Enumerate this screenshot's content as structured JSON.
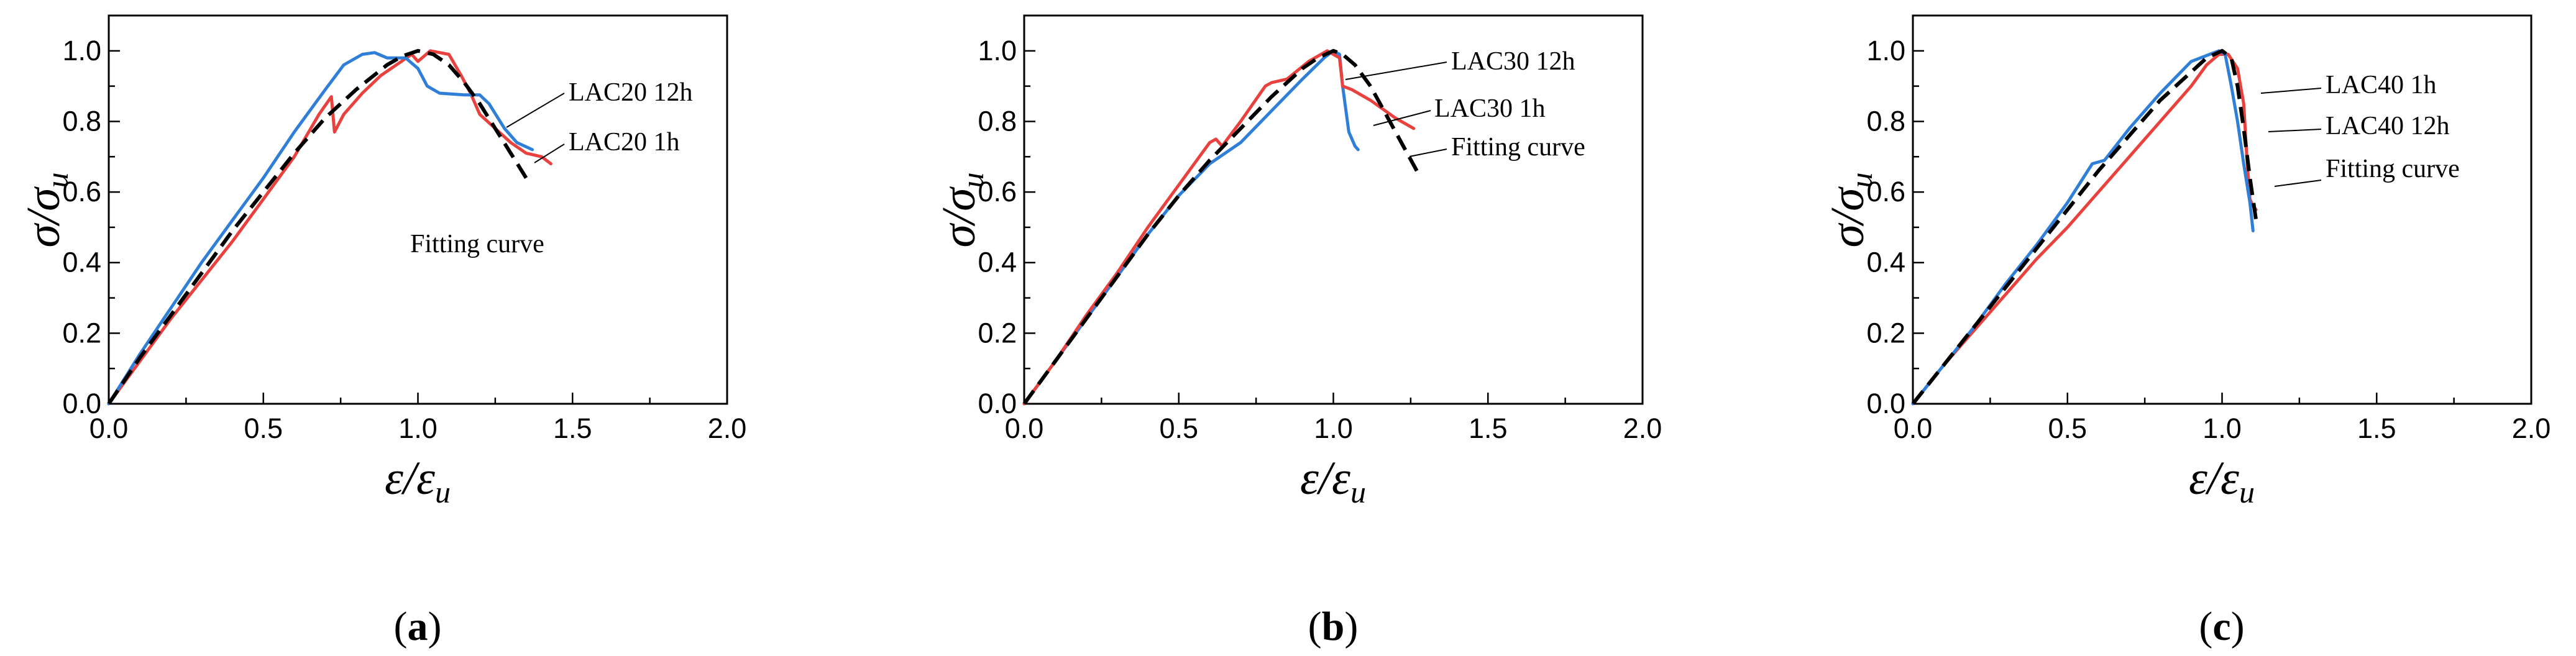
{
  "figure": {
    "panels": [
      {
        "id": "a",
        "label_open": "(",
        "label_letter": "a",
        "label_close": ")"
      },
      {
        "id": "b",
        "label_open": "(",
        "label_letter": "b",
        "label_close": ")"
      },
      {
        "id": "c",
        "label_open": "(",
        "label_letter": "c",
        "label_close": ")"
      }
    ],
    "colors": {
      "red": "#e8413e",
      "blue": "#2f7fd8",
      "black": "#000000"
    }
  },
  "chart_data": [
    {
      "type": "line",
      "panel": "a",
      "ylabel": {
        "main": "σ/σ",
        "sub": "u"
      },
      "xlabel": {
        "main": "ε/ε",
        "sub": "u"
      },
      "xlim": [
        0,
        2.0
      ],
      "ylim": [
        0,
        1.1
      ],
      "xticks": [
        "0.0",
        "0.5",
        "1.0",
        "1.5",
        "2.0"
      ],
      "yticks": [
        "0.0",
        "0.2",
        "0.4",
        "0.6",
        "0.8",
        "1.0"
      ],
      "annotations": [
        "LAC20 12h",
        "LAC20 1h",
        "Fitting curve"
      ],
      "series": [
        {
          "name": "LAC20 1h",
          "color": "#e8413e",
          "style": "solid",
          "x": [
            0,
            0.1,
            0.2,
            0.3,
            0.4,
            0.5,
            0.6,
            0.68,
            0.72,
            0.73,
            0.76,
            0.82,
            0.88,
            0.93,
            0.98,
            1.0,
            1.04,
            1.1,
            1.14,
            1.17,
            1.2,
            1.25,
            1.3,
            1.35,
            1.4,
            1.43
          ],
          "y": [
            0,
            0.12,
            0.24,
            0.35,
            0.46,
            0.58,
            0.7,
            0.82,
            0.87,
            0.77,
            0.82,
            0.88,
            0.93,
            0.96,
            0.99,
            0.97,
            1.0,
            0.99,
            0.93,
            0.88,
            0.82,
            0.78,
            0.74,
            0.71,
            0.7,
            0.68
          ]
        },
        {
          "name": "LAC20 12h",
          "color": "#2f7fd8",
          "style": "solid",
          "x": [
            0,
            0.1,
            0.2,
            0.3,
            0.4,
            0.5,
            0.6,
            0.7,
            0.76,
            0.82,
            0.86,
            0.9,
            0.96,
            1.0,
            1.03,
            1.07,
            1.15,
            1.2,
            1.23,
            1.28,
            1.32,
            1.37
          ],
          "y": [
            0,
            0.14,
            0.27,
            0.4,
            0.52,
            0.64,
            0.77,
            0.89,
            0.96,
            0.99,
            0.995,
            0.98,
            0.98,
            0.95,
            0.9,
            0.88,
            0.875,
            0.875,
            0.85,
            0.78,
            0.74,
            0.72
          ]
        },
        {
          "name": "Fitting curve",
          "color": "#000000",
          "style": "dashed",
          "x": [
            0,
            0.1,
            0.2,
            0.3,
            0.4,
            0.5,
            0.6,
            0.7,
            0.8,
            0.9,
            0.95,
            1.0,
            1.05,
            1.1,
            1.15,
            1.2,
            1.25,
            1.3,
            1.35
          ],
          "y": [
            0,
            0.13,
            0.25,
            0.37,
            0.49,
            0.6,
            0.71,
            0.81,
            0.89,
            0.96,
            0.985,
            1.0,
            0.99,
            0.96,
            0.91,
            0.85,
            0.78,
            0.71,
            0.64
          ]
        }
      ]
    },
    {
      "type": "line",
      "panel": "b",
      "ylabel": {
        "main": "σ/σ",
        "sub": "u"
      },
      "xlabel": {
        "main": "ε/ε",
        "sub": "u"
      },
      "xlim": [
        0,
        2.0
      ],
      "ylim": [
        0,
        1.1
      ],
      "xticks": [
        "0.0",
        "0.5",
        "1.0",
        "1.5",
        "2.0"
      ],
      "yticks": [
        "0.0",
        "0.2",
        "0.4",
        "0.6",
        "0.8",
        "1.0"
      ],
      "annotations": [
        "LAC30 12h",
        "LAC30 1h",
        "Fitting curve"
      ],
      "series": [
        {
          "name": "LAC30 12h",
          "color": "#2f7fd8",
          "style": "solid",
          "x": [
            0,
            0.1,
            0.2,
            0.3,
            0.4,
            0.5,
            0.6,
            0.7,
            0.8,
            0.9,
            0.97,
            1.0,
            1.02,
            1.03,
            1.05,
            1.07,
            1.08
          ],
          "y": [
            0,
            0.12,
            0.24,
            0.36,
            0.48,
            0.59,
            0.68,
            0.74,
            0.83,
            0.92,
            0.98,
            1.0,
            0.99,
            0.9,
            0.77,
            0.73,
            0.72
          ]
        },
        {
          "name": "LAC30 1h",
          "color": "#e8413e",
          "style": "solid",
          "x": [
            0,
            0.1,
            0.2,
            0.3,
            0.4,
            0.5,
            0.6,
            0.62,
            0.64,
            0.7,
            0.78,
            0.8,
            0.85,
            0.92,
            0.98,
            1.0,
            1.02,
            1.03,
            1.06,
            1.12,
            1.2,
            1.26
          ],
          "y": [
            0,
            0.12,
            0.25,
            0.37,
            0.5,
            0.62,
            0.74,
            0.75,
            0.73,
            0.8,
            0.9,
            0.91,
            0.92,
            0.97,
            1.0,
            0.99,
            0.98,
            0.9,
            0.89,
            0.86,
            0.81,
            0.78
          ]
        },
        {
          "name": "Fitting curve",
          "color": "#000000",
          "style": "dashed",
          "x": [
            0,
            0.1,
            0.2,
            0.3,
            0.4,
            0.5,
            0.6,
            0.7,
            0.8,
            0.9,
            0.95,
            1.0,
            1.03,
            1.07,
            1.12,
            1.17,
            1.22,
            1.27
          ],
          "y": [
            0,
            0.12,
            0.24,
            0.36,
            0.48,
            0.59,
            0.69,
            0.78,
            0.87,
            0.95,
            0.98,
            1.0,
            0.99,
            0.96,
            0.9,
            0.82,
            0.74,
            0.66
          ]
        }
      ]
    },
    {
      "type": "line",
      "panel": "c",
      "ylabel": {
        "main": "σ/σ",
        "sub": "u"
      },
      "xlabel": {
        "main": "ε/ε",
        "sub": "u"
      },
      "xlim": [
        0,
        2.0
      ],
      "ylim": [
        0,
        1.1
      ],
      "xticks": [
        "0.0",
        "0.5",
        "1.0",
        "1.5",
        "2.0"
      ],
      "yticks": [
        "0.0",
        "0.2",
        "0.4",
        "0.6",
        "0.8",
        "1.0"
      ],
      "annotations": [
        "LAC40 1h",
        "LAC40 12h",
        "Fitting curve"
      ],
      "series": [
        {
          "name": "LAC40 12h",
          "color": "#e8413e",
          "style": "solid",
          "x": [
            0,
            0.1,
            0.2,
            0.3,
            0.4,
            0.5,
            0.6,
            0.7,
            0.8,
            0.9,
            0.95,
            0.99,
            1.02,
            1.05,
            1.07,
            1.08,
            1.09,
            1.1,
            1.11
          ],
          "y": [
            0,
            0.11,
            0.21,
            0.31,
            0.41,
            0.5,
            0.6,
            0.7,
            0.8,
            0.9,
            0.96,
            0.99,
            0.99,
            0.95,
            0.85,
            0.7,
            0.58,
            0.56,
            0.55
          ]
        },
        {
          "name": "LAC40 1h",
          "color": "#2f7fd8",
          "style": "solid",
          "x": [
            0,
            0.1,
            0.2,
            0.3,
            0.4,
            0.5,
            0.58,
            0.62,
            0.7,
            0.8,
            0.9,
            0.96,
            0.99,
            1.01,
            1.03,
            1.05,
            1.07,
            1.09,
            1.1
          ],
          "y": [
            0,
            0.11,
            0.22,
            0.34,
            0.45,
            0.57,
            0.68,
            0.69,
            0.78,
            0.88,
            0.97,
            0.99,
            1.0,
            0.99,
            0.9,
            0.8,
            0.68,
            0.57,
            0.49
          ]
        },
        {
          "name": "Fitting curve",
          "color": "#000000",
          "style": "dashed",
          "x": [
            0,
            0.1,
            0.2,
            0.3,
            0.4,
            0.5,
            0.6,
            0.7,
            0.8,
            0.9,
            0.95,
            1.0,
            1.03,
            1.05,
            1.07,
            1.09,
            1.11
          ],
          "y": [
            0,
            0.11,
            0.22,
            0.33,
            0.44,
            0.55,
            0.66,
            0.76,
            0.86,
            0.94,
            0.98,
            1.0,
            0.98,
            0.9,
            0.78,
            0.64,
            0.52
          ]
        }
      ]
    }
  ]
}
